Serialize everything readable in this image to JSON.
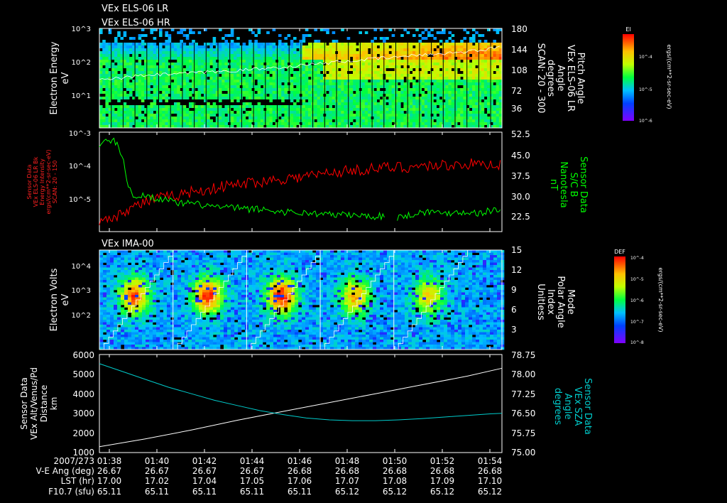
{
  "header": {
    "line1": "VEx ELS-06 LR",
    "line2": "VEx ELS-06 HR"
  },
  "colors": {
    "background": "#000000",
    "axis": "#ffffff",
    "bfield": "#00ff00",
    "intensity": "#ff0000",
    "sza": "#00cccc"
  },
  "time_axis": {
    "ticks": [
      "01:38",
      "01:40",
      "01:42",
      "01:44",
      "01:46",
      "01:48",
      "01:50",
      "01:52",
      "01:54"
    ],
    "rows": [
      {
        "label": "2007/273",
        "values": [
          "01:38",
          "01:40",
          "01:42",
          "01:44",
          "01:46",
          "01:48",
          "01:50",
          "01:52",
          "01:54"
        ]
      },
      {
        "label": "V-E Ang (deg)",
        "values": [
          "26.67",
          "26.67",
          "26.67",
          "26.67",
          "26.68",
          "26.68",
          "26.68",
          "26.68",
          "26.68"
        ]
      },
      {
        "label": "LST (hr)",
        "values": [
          "17.00",
          "17.02",
          "17.04",
          "17.05",
          "17.06",
          "17.07",
          "17.08",
          "17.09",
          "17.10"
        ]
      },
      {
        "label": "F10.7 (sfu)",
        "values": [
          "65.11",
          "65.11",
          "65.11",
          "65.11",
          "65.11",
          "65.12",
          "65.12",
          "65.12",
          "65.12"
        ]
      }
    ]
  },
  "chart_data": [
    {
      "type": "heatmap",
      "ylabel": [
        "Electron Energy",
        "eV"
      ],
      "y_ticks": [
        "10^3",
        "10^2",
        "10^1"
      ],
      "y_scale": "log",
      "ylim": [
        1,
        1000
      ],
      "right_ylabel": [
        "Pitch Angle",
        "VEx ELS-06 LR",
        "Angle",
        "degrees",
        "SCAN: 20 - 300"
      ],
      "right_ticks": [
        "180",
        "144",
        "108",
        "72",
        "36"
      ],
      "right_ylim": [
        0,
        180
      ],
      "colorbar": {
        "title": "El",
        "unit": "ergs/(cm**2-sr-sec-eV)",
        "ticks": [
          "10^-4",
          "10^-5",
          "10^-6"
        ]
      },
      "overlay": {
        "color": "#ffffff",
        "x": [
          0,
          2,
          4,
          6,
          8,
          10,
          12,
          14,
          16,
          17.5
        ],
        "y": [
          86,
          95,
          99,
          104,
          110,
          118,
          125,
          132,
          138,
          146
        ]
      }
    },
    {
      "type": "line",
      "ylabel": [
        "Sensor Data",
        "VEx ELS-06 LR Bk",
        "Energy Intensity",
        "ergs/(cm**2-sr-sec-eV)",
        "SCAN: 20 - 150"
      ],
      "y_ticks": [
        "10^-3",
        "10^-4",
        "10^-5"
      ],
      "ylim": [
        "1e-6",
        "1e-3"
      ],
      "right_ylabel": [
        "Sensor Data",
        "S/C B",
        "Nanotesla",
        "nT"
      ],
      "right_ticks": [
        "52.5",
        "45.0",
        "37.5",
        "30.0",
        "22.5"
      ],
      "right_ylim": [
        17,
        52.5
      ],
      "series": [
        {
          "axis": "left",
          "color": "#ff0000",
          "x": [
            0,
            0.3,
            0.6,
            1,
            1.3,
            1.6,
            2,
            2.5,
            3,
            3.5,
            4,
            4.5,
            5,
            5.5,
            6,
            6.5,
            7,
            7.5,
            8,
            8.5,
            9,
            9.5,
            10,
            10.5,
            11,
            11.5,
            12,
            12.5,
            13,
            13.5,
            14,
            14.5,
            15,
            15.5,
            16,
            16.5,
            17,
            17.5
          ],
          "y": [
            2e-06,
            3e-06,
            2.5e-06,
            4e-06,
            5e-06,
            6e-06,
            8e-06,
            1e-05,
            1.1e-05,
            1.3e-05,
            1.6e-05,
            1.8e-05,
            2e-05,
            2.4e-05,
            2.6e-05,
            3e-05,
            3.2e-05,
            3.6e-05,
            4e-05,
            4.2e-05,
            4.8e-05,
            5.2e-05,
            6e-05,
            6.5e-05,
            7e-05,
            7.5e-05,
            8e-05,
            8.5e-05,
            8.8e-05,
            9e-05,
            9.5e-05,
            0.0001,
            0.0001,
            0.000105,
            0.00011,
            0.000105,
            0.00011,
            0.000105
          ]
        },
        {
          "axis": "right",
          "color": "#00ff00",
          "x": [
            0,
            0.3,
            0.6,
            0.9,
            1.1,
            1.3,
            1.6,
            2,
            2.5,
            3,
            3.5,
            4,
            4.5,
            5,
            5.5,
            6,
            6.5,
            7,
            7.5,
            8,
            8.5,
            9,
            9.5,
            10,
            10.5,
            11,
            11.5,
            12,
            12.5,
            13,
            13.5,
            14,
            14.5,
            15,
            15.5,
            16,
            16.5,
            17,
            17.5
          ],
          "y": [
            48,
            49,
            50,
            46,
            40,
            32,
            29,
            30,
            29,
            28,
            27,
            27,
            26.5,
            26,
            25.5,
            25.5,
            25,
            25,
            24.5,
            24,
            24,
            23.5,
            23.5,
            23,
            23,
            23,
            22.5,
            22.5,
            22.5,
            22,
            23,
            24,
            24,
            23.5,
            24,
            24,
            23.5,
            24.5,
            25
          ]
        }
      ]
    },
    {
      "type": "heatmap",
      "title": "VEx IMA-00",
      "ylabel": [
        "Electron Volts",
        "eV"
      ],
      "y_ticks": [
        "10^4",
        "10^3",
        "10^2"
      ],
      "y_scale": "log",
      "ylim": [
        10,
        30000
      ],
      "right_ylabel": [
        "Mode",
        "Polar Angle",
        "Index",
        "Unitless"
      ],
      "right_ticks": [
        "15",
        "12",
        "9",
        "6",
        "3"
      ],
      "right_ylim": [
        0,
        15
      ],
      "colorbar": {
        "title": "DEF",
        "unit": "ergs/(cm**2-sr-sec-eV)",
        "ticks": [
          "10^-4",
          "10^-5",
          "10^-6",
          "10^-7",
          "10^-8"
        ]
      },
      "scan_boundaries_min": [
        0,
        3.2,
        6.4,
        9.6,
        12.8,
        16
      ]
    },
    {
      "type": "line",
      "ylabel": [
        "Sensor Data",
        "VEx Alt/Venus/Pd",
        "Distance",
        "km"
      ],
      "y_ticks": [
        "6000",
        "5000",
        "4000",
        "3000",
        "2000",
        "1000"
      ],
      "ylim": [
        1000,
        6000
      ],
      "right_ylabel": [
        "Sensor Data",
        "VEx SZA",
        "Angle",
        "degrees"
      ],
      "right_ticks": [
        "78.75",
        "78.00",
        "77.25",
        "76.50",
        "75.75",
        "75.00"
      ],
      "right_ylim": [
        75,
        78.75
      ],
      "series": [
        {
          "axis": "left",
          "color": "#ffffff",
          "x": [
            0,
            2,
            4,
            6,
            8,
            10,
            12,
            14,
            16,
            17.5
          ],
          "y": [
            1300,
            1700,
            2150,
            2650,
            3100,
            3550,
            4000,
            4450,
            4900,
            5300
          ]
        },
        {
          "axis": "right",
          "color": "#00cccc",
          "x": [
            0,
            1,
            2,
            3,
            4,
            5,
            6,
            7,
            8,
            9,
            10,
            11,
            12,
            13,
            14,
            15,
            16,
            17,
            17.5
          ],
          "y": [
            78.4,
            78.1,
            77.8,
            77.5,
            77.25,
            77.0,
            76.8,
            76.6,
            76.45,
            76.32,
            76.25,
            76.22,
            76.22,
            76.25,
            76.3,
            76.36,
            76.42,
            76.48,
            76.5
          ]
        }
      ]
    }
  ]
}
